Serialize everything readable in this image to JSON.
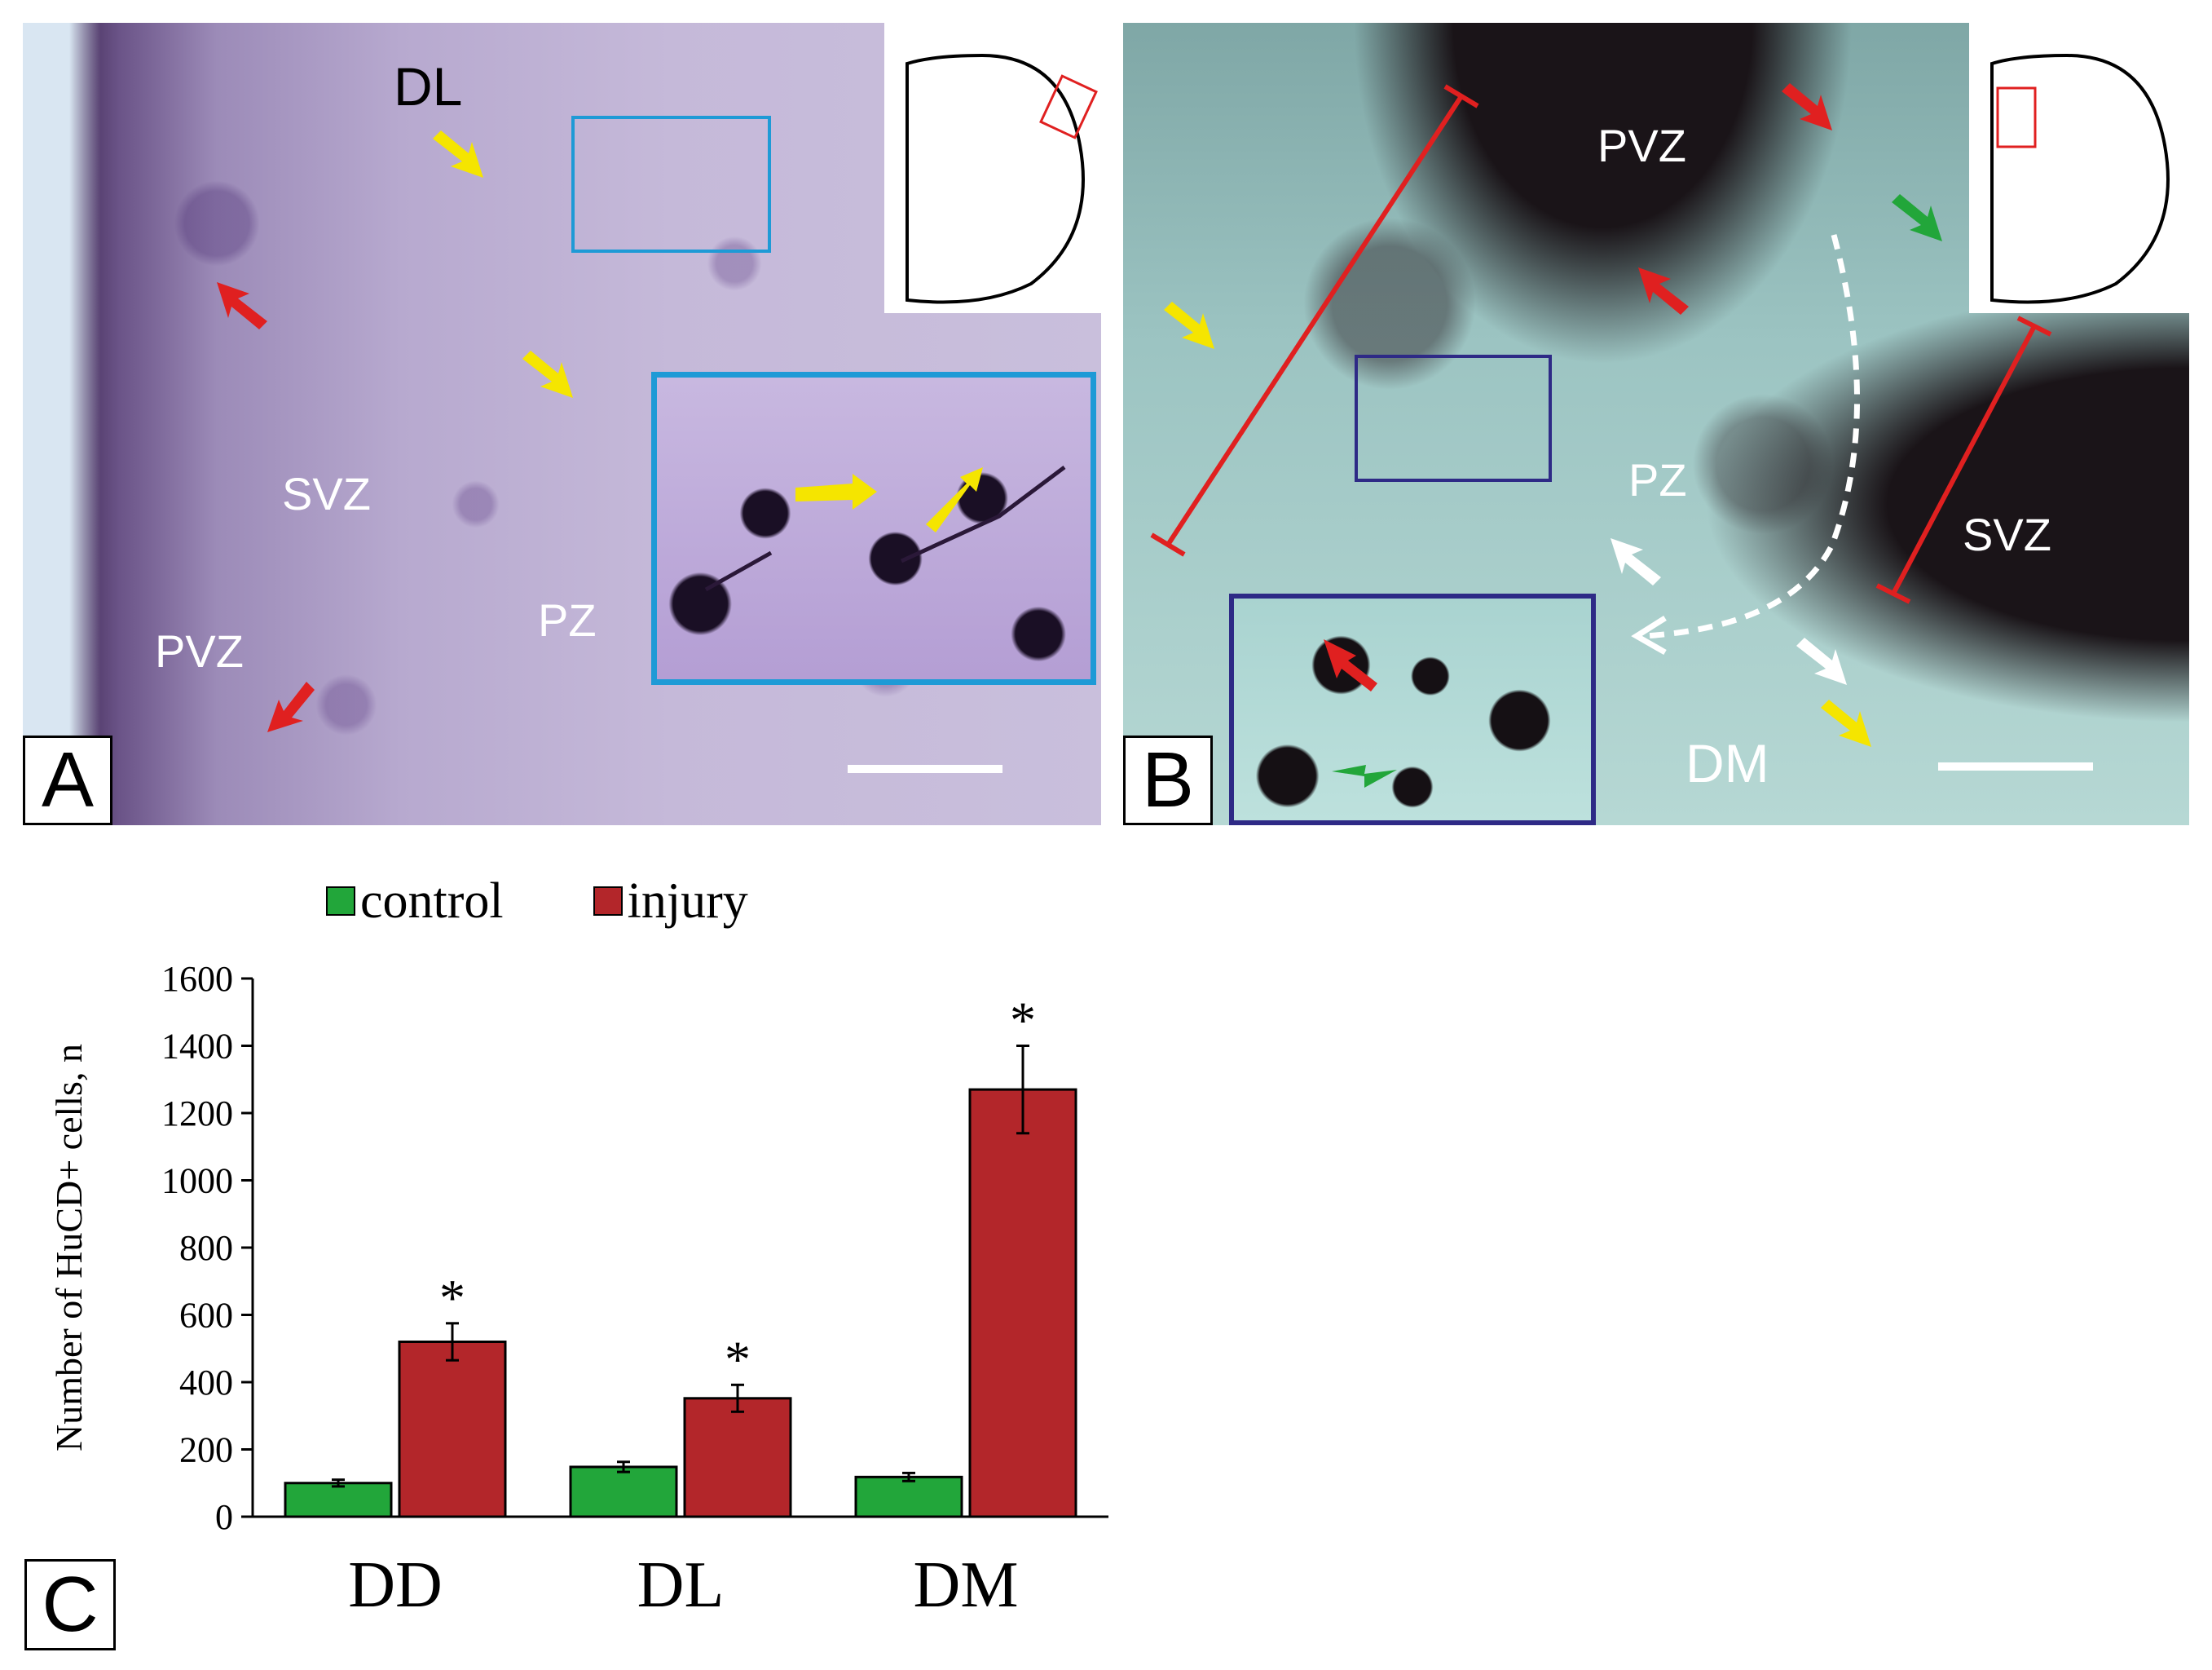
{
  "panel_a": {
    "letter": "A",
    "labels": {
      "dl": "DL",
      "svz": "SVZ",
      "pvz": "PVZ",
      "pz": "PZ"
    },
    "colors": {
      "stain": "#9c8bb8",
      "inset_border": "#1e9ad6"
    }
  },
  "panel_b": {
    "letter": "B",
    "labels": {
      "pvz": "PVZ",
      "pz": "PZ",
      "svz": "SVZ",
      "dm": "DM"
    },
    "colors": {
      "stain": "#9cc4c2",
      "inset_border": "#2e2a86"
    }
  },
  "panel_c": {
    "letter": "C",
    "legend": [
      {
        "name": "control",
        "color": "#22a63a"
      },
      {
        "name": "injury",
        "color": "#b3262a"
      }
    ]
  },
  "chart_data": {
    "type": "bar",
    "title": "",
    "ylabel": "Number of HuCD+ cells, n",
    "xlabel": "",
    "categories": [
      "DD",
      "DL",
      "DM"
    ],
    "series": [
      {
        "name": "control",
        "color": "#22a63a",
        "values": [
          100,
          148,
          118
        ],
        "errors": [
          10,
          15,
          12
        ]
      },
      {
        "name": "injury",
        "color": "#b3262a",
        "values": [
          520,
          352,
          1270
        ],
        "errors": [
          55,
          40,
          130
        ]
      }
    ],
    "significance": [
      "*",
      "*",
      "*"
    ],
    "ylim": [
      0,
      1600
    ],
    "yticks": [
      "0",
      "200",
      "400",
      "600",
      "800",
      "1000",
      "1200",
      "1400",
      "1600"
    ],
    "grid": false,
    "legend_position": "top"
  }
}
